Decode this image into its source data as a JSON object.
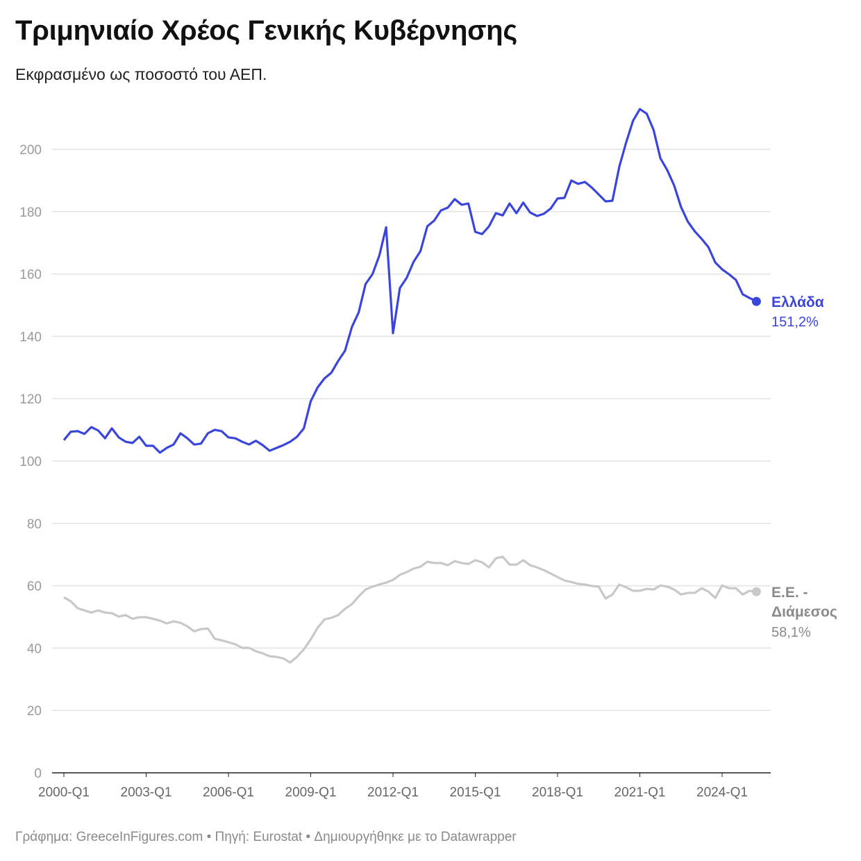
{
  "header": {
    "title": "Τριμηνιαίο Χρέος Γενικής Κυβέρνησης",
    "subtitle": "Εκφρασμένο ως ποσοστό του ΑΕΠ."
  },
  "footer": {
    "text": "Γράφημα: GreeceInFigures.com • Πηγή: Eurostat • Δημιουργήθηκε με το Datawrapper"
  },
  "chart_data": {
    "type": "line",
    "title": "Τριμηνιαίο Χρέος Γενικής Κυβέρνησης",
    "subtitle": "Εκφρασμένο ως ποσοστό του ΑΕΠ.",
    "x_start": "2000-Q1",
    "x_end": "2025-Q2",
    "x_tick_labels": [
      "2000-Q1",
      "2003-Q1",
      "2006-Q1",
      "2009-Q1",
      "2012-Q1",
      "2015-Q1",
      "2018-Q1",
      "2021-Q1",
      "2024-Q1"
    ],
    "y_ticks": [
      0,
      20,
      40,
      60,
      80,
      100,
      120,
      140,
      160,
      180,
      200
    ],
    "ylim": [
      0,
      213
    ],
    "grid": true,
    "series": [
      {
        "name": "Ελλάδα",
        "end_label": "151,2%",
        "color": "#3a45dc",
        "values": [
          106.7,
          109.4,
          109.6,
          108.7,
          110.9,
          109.8,
          107.3,
          110.5,
          107.6,
          106.2,
          105.8,
          107.8,
          104.9,
          104.9,
          102.7,
          104.2,
          105.3,
          108.9,
          107.3,
          105.3,
          105.6,
          108.9,
          110.0,
          109.6,
          107.6,
          107.3,
          106.2,
          105.3,
          106.5,
          105.1,
          103.3,
          104.2,
          105.1,
          106.2,
          107.8,
          110.5,
          119.2,
          123.6,
          126.5,
          128.3,
          132.1,
          135.4,
          143.0,
          147.7,
          156.8,
          159.9,
          165.9,
          175.0,
          141.0,
          155.5,
          158.8,
          163.9,
          167.3,
          175.3,
          177.1,
          180.4,
          181.3,
          184.0,
          182.2,
          182.6,
          173.5,
          172.8,
          175.3,
          179.5,
          178.8,
          182.6,
          179.5,
          182.9,
          179.7,
          178.6,
          179.3,
          181.0,
          184.2,
          184.4,
          190.0,
          188.9,
          189.5,
          187.7,
          185.5,
          183.3,
          183.5,
          194.4,
          202.2,
          209.1,
          212.9,
          211.4,
          206.2,
          197.1,
          193.3,
          188.4,
          181.5,
          176.8,
          173.7,
          171.3,
          168.6,
          163.7,
          161.5,
          159.9,
          158.1,
          153.5,
          152.3,
          151.2
        ]
      },
      {
        "name": "Ε.Ε. - Διάμεσος",
        "name_lines": [
          "Ε.Ε. -",
          "Διάμεσος"
        ],
        "end_label": "58,1%",
        "color": "#c8c8c8",
        "values": [
          56.3,
          55.0,
          52.8,
          52.1,
          51.4,
          52.1,
          51.4,
          51.2,
          50.1,
          50.6,
          49.4,
          49.9,
          49.9,
          49.4,
          48.8,
          47.9,
          48.6,
          48.1,
          47.0,
          45.4,
          46.1,
          46.3,
          43.0,
          42.5,
          41.9,
          41.2,
          40.1,
          40.1,
          39.0,
          38.3,
          37.4,
          37.2,
          36.7,
          35.4,
          37.2,
          39.6,
          42.8,
          46.5,
          49.2,
          49.7,
          50.6,
          52.6,
          54.1,
          56.6,
          58.8,
          59.7,
          60.4,
          61.0,
          61.9,
          63.5,
          64.4,
          65.5,
          66.1,
          67.7,
          67.3,
          67.3,
          66.6,
          67.9,
          67.3,
          67.0,
          68.2,
          67.5,
          65.9,
          68.8,
          69.3,
          66.8,
          66.8,
          68.2,
          66.6,
          65.9,
          65.0,
          63.9,
          62.8,
          61.7,
          61.2,
          60.6,
          60.4,
          59.9,
          59.7,
          55.9,
          57.2,
          60.4,
          59.5,
          58.4,
          58.4,
          59.0,
          58.8,
          60.1,
          59.7,
          58.8,
          57.2,
          57.7,
          57.7,
          59.2,
          58.1,
          56.1,
          60.1,
          59.2,
          59.2,
          57.2,
          58.4,
          58.1
        ]
      }
    ]
  }
}
